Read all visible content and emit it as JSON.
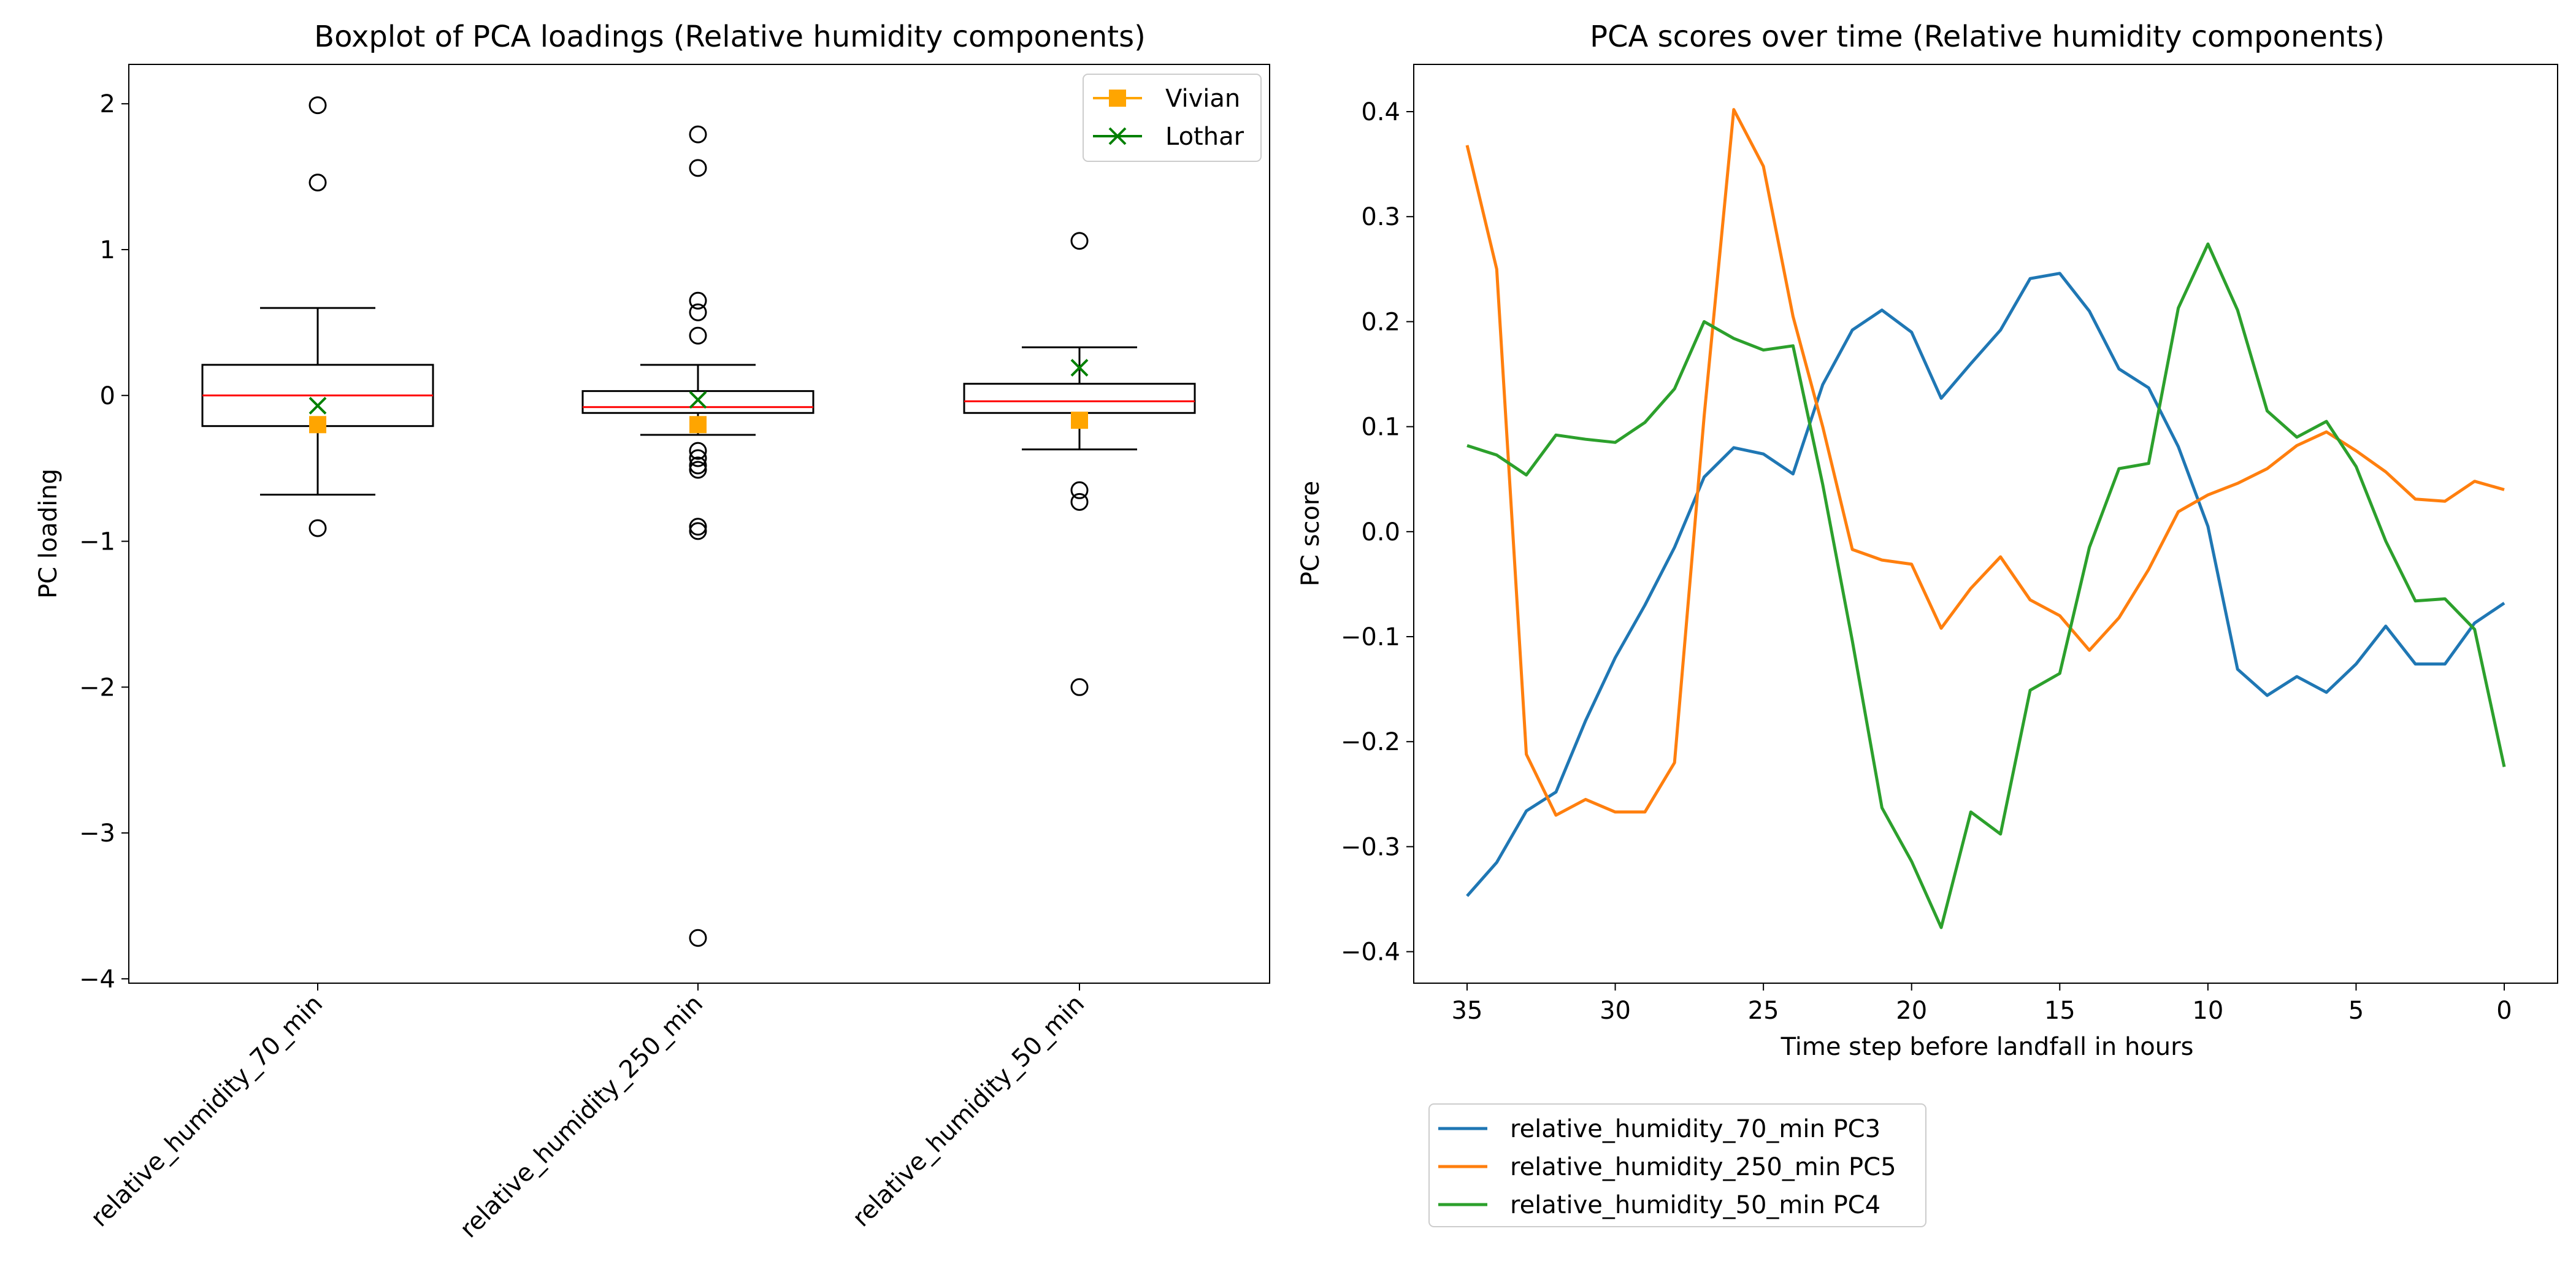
{
  "chart_data": [
    {
      "type": "boxplot",
      "title": "Boxplot of PCA loadings (Relative humidity components)",
      "xlabel": "",
      "ylabel": "PC loading",
      "ylim": [
        -4.03,
        2.27
      ],
      "yticks": [
        -4,
        -3,
        -2,
        -1,
        0,
        1,
        2
      ],
      "ytick_labels": [
        "−4",
        "−3",
        "−2",
        "−1",
        "0",
        "1",
        "2"
      ],
      "categories": [
        "relative_humidity_70_min",
        "relative_humidity_250_min",
        "relative_humidity_50_min"
      ],
      "boxes": [
        {
          "name": "relative_humidity_70_min",
          "whisker_low": -0.68,
          "q1": -0.21,
          "median": 0.0,
          "q3": 0.21,
          "whisker_high": 0.6,
          "outliers": [
            1.99,
            1.46,
            -0.91
          ]
        },
        {
          "name": "relative_humidity_250_min",
          "whisker_low": -0.27,
          "q1": -0.12,
          "median": -0.08,
          "q3": 0.03,
          "whisker_high": 0.21,
          "outliers": [
            1.79,
            1.56,
            0.65,
            0.57,
            0.41,
            -0.38,
            -0.43,
            -0.48,
            -0.51,
            -0.9,
            -0.93,
            -3.72
          ]
        },
        {
          "name": "relative_humidity_50_min",
          "whisker_low": -0.37,
          "q1": -0.12,
          "median": -0.04,
          "q3": 0.08,
          "whisker_high": 0.33,
          "outliers": [
            1.06,
            -0.65,
            -0.73,
            -2.0
          ]
        }
      ],
      "markers": [
        {
          "name": "Vivian",
          "color": "#ffa500",
          "marker": "square",
          "values": [
            -0.2,
            -0.2,
            -0.17
          ]
        },
        {
          "name": "Lothar",
          "color": "#008000",
          "marker": "x",
          "values": [
            -0.07,
            -0.03,
            0.19
          ]
        }
      ],
      "legend": {
        "placement": "top-right",
        "entries": [
          "Vivian",
          "Lothar"
        ]
      },
      "grid": false
    },
    {
      "type": "line",
      "title": "PCA scores over time (Relative humidity components)",
      "xlabel": "Time step before landfall in hours",
      "ylabel": "PC score",
      "xlim": [
        36.8,
        -1.8
      ],
      "ylim": [
        -0.43,
        0.445
      ],
      "xticks": [
        35,
        30,
        25,
        20,
        15,
        10,
        5,
        0
      ],
      "yticks": [
        -0.4,
        -0.3,
        -0.2,
        -0.1,
        0.0,
        0.1,
        0.2,
        0.3,
        0.4
      ],
      "ytick_labels": [
        "−0.4",
        "−0.3",
        "−0.2",
        "−0.1",
        "0.0",
        "0.1",
        "0.2",
        "0.3",
        "0.4"
      ],
      "x": [
        35,
        34,
        33,
        32,
        31,
        30,
        29,
        28,
        27,
        26,
        25,
        24,
        23,
        22,
        21,
        20,
        19,
        18,
        17,
        16,
        15,
        14,
        13,
        12,
        11,
        10,
        9,
        8,
        7,
        6,
        5,
        4,
        3,
        2,
        1,
        0
      ],
      "series": [
        {
          "name": "relative_humidity_70_min PC3",
          "color": "#1f77b4",
          "values": [
            -0.347,
            -0.315,
            -0.266,
            -0.248,
            -0.18,
            -0.12,
            -0.07,
            -0.015,
            0.052,
            0.08,
            0.074,
            0.055,
            0.14,
            0.192,
            0.211,
            0.19,
            0.127,
            0.16,
            0.192,
            0.241,
            0.246,
            0.21,
            0.155,
            0.137,
            0.081,
            0.005,
            -0.131,
            -0.156,
            -0.138,
            -0.153,
            -0.126,
            -0.09,
            -0.126,
            -0.126,
            -0.087,
            -0.068
          ]
        },
        {
          "name": "relative_humidity_250_min PC5",
          "color": "#ff7f0e",
          "values": [
            0.368,
            0.25,
            -0.212,
            -0.27,
            -0.255,
            -0.267,
            -0.267,
            -0.22,
            0.11,
            0.402,
            0.348,
            0.205,
            0.1,
            -0.017,
            -0.027,
            -0.031,
            -0.092,
            -0.054,
            -0.024,
            -0.065,
            -0.08,
            -0.113,
            -0.082,
            -0.036,
            0.019,
            0.035,
            0.046,
            0.06,
            0.082,
            0.095,
            0.077,
            0.057,
            0.031,
            0.029,
            0.048,
            0.04
          ]
        },
        {
          "name": "relative_humidity_50_min PC4",
          "color": "#2ca02c",
          "values": [
            0.082,
            0.073,
            0.054,
            0.092,
            0.088,
            0.085,
            0.104,
            0.136,
            0.2,
            0.184,
            0.173,
            0.177,
            0.045,
            -0.104,
            -0.263,
            -0.314,
            -0.377,
            -0.267,
            -0.288,
            -0.151,
            -0.135,
            -0.015,
            0.06,
            0.065,
            0.213,
            0.274,
            0.211,
            0.115,
            0.09,
            0.105,
            0.062,
            -0.009,
            -0.066,
            -0.064,
            -0.093,
            -0.224
          ]
        }
      ],
      "legend": {
        "placement": "bottom-left outside",
        "entries": [
          "relative_humidity_70_min PC3",
          "relative_humidity_250_min PC5",
          "relative_humidity_50_min PC4"
        ]
      },
      "grid": false
    }
  ]
}
